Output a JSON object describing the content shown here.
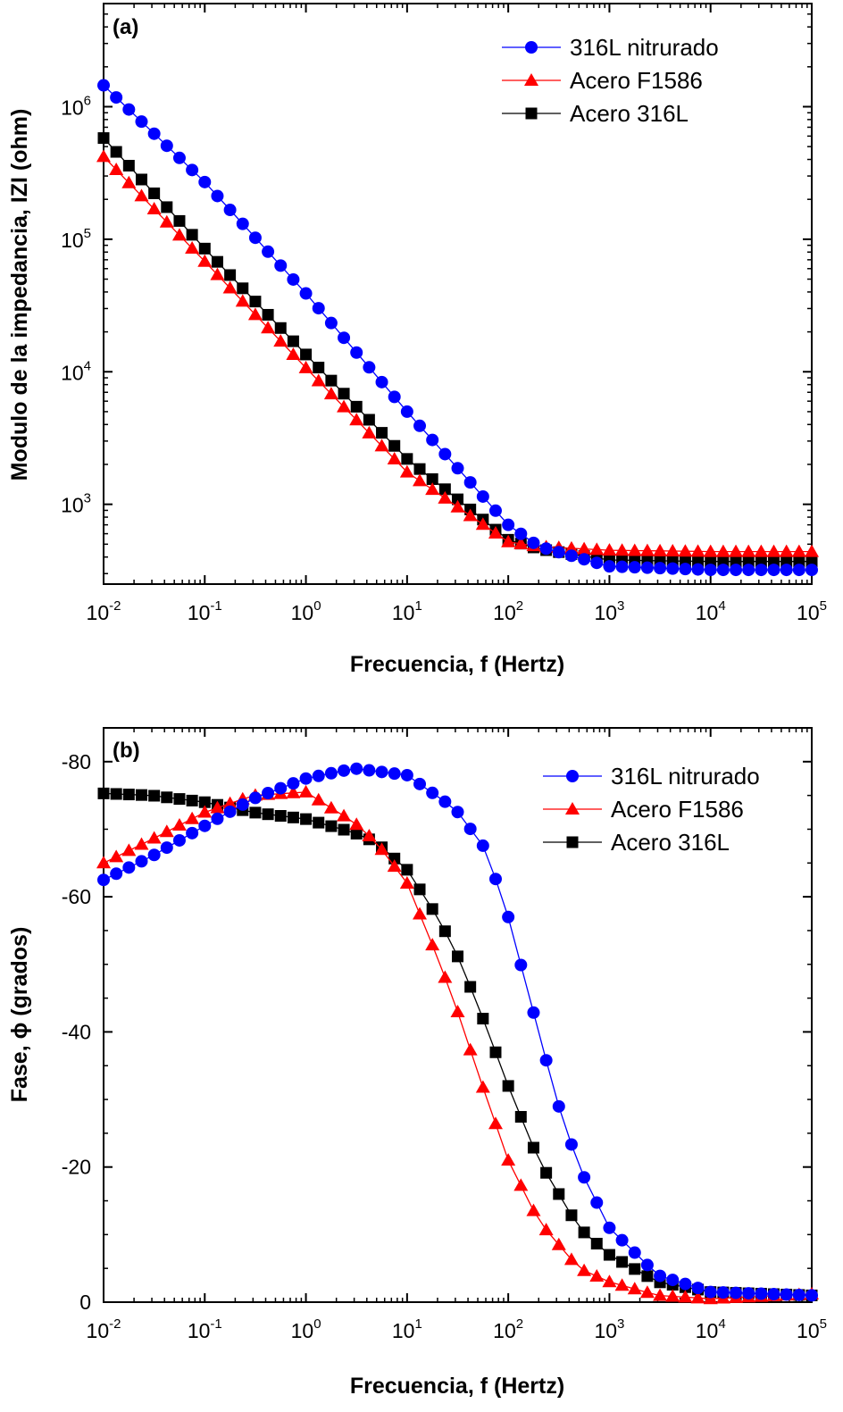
{
  "chart_data": [
    {
      "type": "scatter",
      "panel_label": "(a)",
      "xlabel": "Frecuencia, f (Hertz)",
      "ylabel": "Modulo de la impedancia, IZI (ohm)",
      "xscale": "log",
      "yscale": "log",
      "xlim": [
        0.01,
        100000
      ],
      "ylim": [
        250,
        6000000
      ],
      "x_ticks": [
        {
          "base": "10",
          "exp": "-2",
          "value": 0.01
        },
        {
          "base": "10",
          "exp": "-1",
          "value": 0.1
        },
        {
          "base": "10",
          "exp": "0",
          "value": 1
        },
        {
          "base": "10",
          "exp": "1",
          "value": 10
        },
        {
          "base": "10",
          "exp": "2",
          "value": 100
        },
        {
          "base": "10",
          "exp": "3",
          "value": 1000
        },
        {
          "base": "10",
          "exp": "4",
          "value": 10000
        },
        {
          "base": "10",
          "exp": "5",
          "value": 100000
        }
      ],
      "y_ticks": [
        {
          "base": "10",
          "exp": "3",
          "value": 1000
        },
        {
          "base": "10",
          "exp": "4",
          "value": 10000
        },
        {
          "base": "10",
          "exp": "5",
          "value": 100000
        },
        {
          "base": "10",
          "exp": "6",
          "value": 1000000
        }
      ],
      "legend_position": "top-right",
      "series": [
        {
          "name": "316L nitrurado",
          "marker": "circle",
          "color": "#0000ff",
          "x": [
            0.01,
            0.1,
            1,
            10,
            100,
            200,
            1000,
            10000,
            100000
          ],
          "y": [
            1450000,
            270000,
            39000,
            5000,
            700,
            480,
            340,
            320,
            320
          ]
        },
        {
          "name": "Acero F1586",
          "marker": "triangle",
          "color": "#ff0000",
          "x": [
            0.01,
            0.1,
            1,
            10,
            100,
            200,
            1000,
            10000,
            100000
          ],
          "y": [
            420000,
            68000,
            10700,
            1750,
            520,
            480,
            450,
            440,
            440
          ]
        },
        {
          "name": "Acero 316L",
          "marker": "square",
          "color": "#000000",
          "x": [
            0.01,
            0.1,
            1,
            10,
            100,
            200,
            1000,
            10000,
            100000
          ],
          "y": [
            580000,
            85000,
            13500,
            2200,
            540,
            460,
            380,
            370,
            370
          ]
        }
      ]
    },
    {
      "type": "scatter",
      "panel_label": "(b)",
      "xlabel": "Frecuencia, f (Hertz)",
      "ylabel_prefix": "Fase, ",
      "ylabel_symbol": "ϕ",
      "ylabel_suffix": " (grados)",
      "xscale": "log",
      "yscale": "linear",
      "y_inverted": true,
      "xlim": [
        0.01,
        100000
      ],
      "ylim": [
        0,
        -85
      ],
      "x_ticks": [
        {
          "base": "10",
          "exp": "-2",
          "value": 0.01
        },
        {
          "base": "10",
          "exp": "-1",
          "value": 0.1
        },
        {
          "base": "10",
          "exp": "0",
          "value": 1
        },
        {
          "base": "10",
          "exp": "1",
          "value": 10
        },
        {
          "base": "10",
          "exp": "2",
          "value": 100
        },
        {
          "base": "10",
          "exp": "3",
          "value": 1000
        },
        {
          "base": "10",
          "exp": "4",
          "value": 10000
        },
        {
          "base": "10",
          "exp": "5",
          "value": 100000
        }
      ],
      "y_ticks": [
        {
          "label": "0",
          "value": 0
        },
        {
          "label": "-20",
          "value": -20
        },
        {
          "label": "-40",
          "value": -40
        },
        {
          "label": "-60",
          "value": -60
        },
        {
          "label": "-80",
          "value": -80
        }
      ],
      "legend_position": "top-right",
      "series": [
        {
          "name": "316L nitrurado",
          "marker": "circle",
          "color": "#0000ff",
          "x": [
            0.01,
            0.03,
            0.1,
            0.3,
            1,
            3,
            10,
            30,
            60,
            100,
            150,
            200,
            300,
            500,
            1000,
            3000,
            10000,
            100000
          ],
          "y": [
            -62.5,
            -66,
            -70.5,
            -74.5,
            -77.5,
            -79,
            -78,
            -73,
            -67,
            -57,
            -47,
            -40,
            -30,
            -20,
            -11,
            -4,
            -1.5,
            -1
          ]
        },
        {
          "name": "Acero F1586",
          "marker": "triangle",
          "color": "#ff0000",
          "x": [
            0.01,
            0.03,
            0.1,
            0.3,
            1,
            3,
            5,
            10,
            20,
            30,
            50,
            100,
            200,
            500,
            1000,
            3000,
            10000,
            100000
          ],
          "y": [
            -65,
            -68.5,
            -72.5,
            -75,
            -75.5,
            -71,
            -68,
            -62,
            -51,
            -44,
            -34,
            -21,
            -12,
            -5,
            -3,
            -1,
            -0.5,
            -1.2
          ]
        },
        {
          "name": "Acero 316L",
          "marker": "square",
          "color": "#000000",
          "x": [
            0.01,
            0.03,
            0.1,
            0.3,
            1,
            3,
            5,
            10,
            20,
            30,
            50,
            100,
            200,
            500,
            1000,
            3000,
            10000,
            100000
          ],
          "y": [
            -75.3,
            -75,
            -74,
            -72.5,
            -71.5,
            -69.5,
            -68,
            -64,
            -57,
            -52,
            -44,
            -32,
            -21,
            -11,
            -7,
            -3,
            -1.5,
            -1
          ]
        }
      ]
    }
  ]
}
